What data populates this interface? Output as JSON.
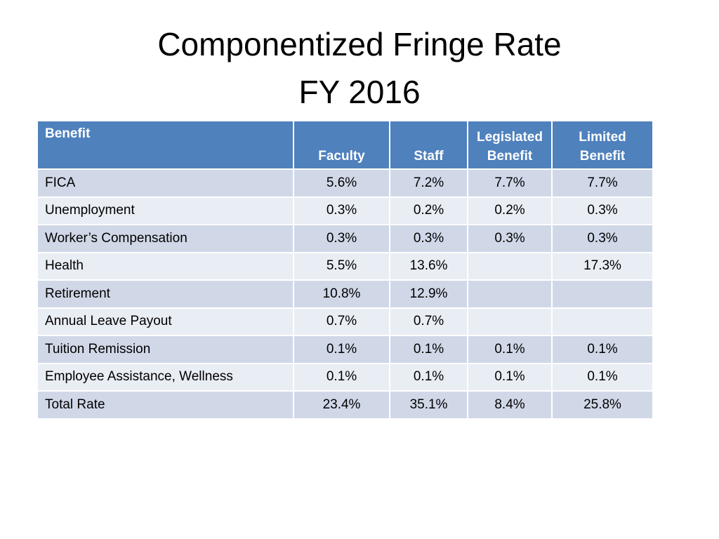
{
  "slide": {
    "title_line1": "Componentized Fringe Rate",
    "title_line2": "FY 2016"
  },
  "colors": {
    "header": "#4F81BD",
    "row_odd": "#D0D8E8",
    "row_even": "#E9EDF4"
  },
  "table": {
    "headers": [
      "Benefit",
      "Faculty",
      "Staff",
      "Legislated Benefit",
      "Limited Benefit"
    ],
    "rows": [
      [
        "FICA",
        "5.6%",
        "7.2%",
        "7.7%",
        "7.7%"
      ],
      [
        "Unemployment",
        "0.3%",
        "0.2%",
        "0.2%",
        "0.3%"
      ],
      [
        "Worker’s Compensation",
        "0.3%",
        "0.3%",
        "0.3%",
        "0.3%"
      ],
      [
        "Health",
        "5.5%",
        "13.6%",
        "",
        "17.3%"
      ],
      [
        "Retirement",
        "10.8%",
        "12.9%",
        "",
        ""
      ],
      [
        "Annual Leave Payout",
        "0.7%",
        "0.7%",
        "",
        ""
      ],
      [
        "Tuition Remission",
        "0.1%",
        "0.1%",
        "0.1%",
        "0.1%"
      ],
      [
        "Employee Assistance, Wellness",
        "0.1%",
        "0.1%",
        "0.1%",
        "0.1%"
      ],
      [
        "Total Rate",
        "23.4%",
        "35.1%",
        "8.4%",
        "25.8%"
      ]
    ]
  }
}
